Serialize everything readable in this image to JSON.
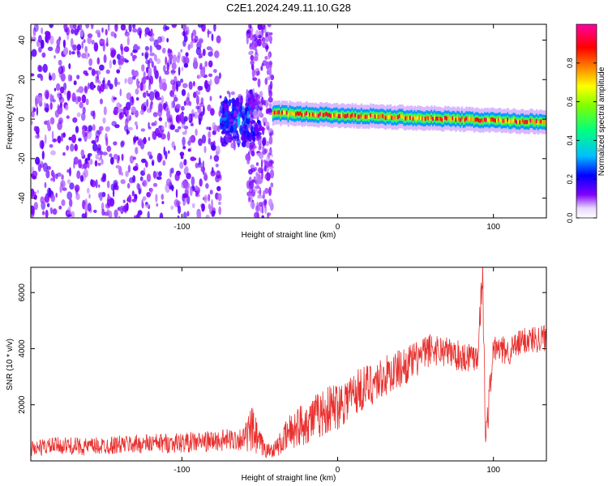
{
  "figure": {
    "title": "C2E1.2024.249.11.10.G28"
  },
  "chart_data": [
    {
      "type": "heatmap",
      "title": "C2E1.2024.249.11.10.G28",
      "xlabel": "Height of straight line (km)",
      "ylabel": "Frequency (Hz)",
      "xlim": [
        -197,
        134
      ],
      "ylim": [
        -50,
        48
      ],
      "xticks": [
        -100,
        0,
        100
      ],
      "yticks": [
        -40,
        -20,
        0,
        20,
        40
      ],
      "xtick_labels": [
        "-100",
        "0",
        "100"
      ],
      "ytick_labels": [
        "-40",
        "-20",
        "0",
        "20",
        "40"
      ],
      "grid": false,
      "colorbar": {
        "label": "Normalized spectral amplitude",
        "range": [
          0,
          1
        ],
        "ticks": [
          0.0,
          0.2,
          0.4,
          0.6,
          0.8
        ],
        "tick_labels": [
          "0.0",
          "0.2",
          "0.4",
          "0.6",
          "0.8"
        ],
        "colormap": [
          "#ffffff",
          "#8000ff",
          "#0000ff",
          "#00c0ff",
          "#00ff80",
          "#80ff00",
          "#ffff00",
          "#ff8000",
          "#ff0000",
          "#ff00a0"
        ]
      },
      "regions": [
        {
          "name": "scattered noise",
          "x": [
            -197,
            -75
          ],
          "freq": [
            -50,
            48
          ],
          "amplitude": 0.12
        },
        {
          "name": "burst",
          "x": [
            -75,
            -50
          ],
          "freq": [
            -15,
            15
          ],
          "amplitude": 0.25
        },
        {
          "name": "noise strip",
          "x": [
            -58,
            -42
          ],
          "freq": [
            -50,
            48
          ],
          "amplitude": 0.1
        },
        {
          "name": "signal trace",
          "x": [
            -42,
            134
          ],
          "freq_center": [
            3,
            -1.5
          ],
          "freq_halfwidth": 2.5,
          "amplitude": 0.8
        }
      ],
      "trace_path": [
        [
          -42,
          3
        ],
        [
          -20,
          1.5
        ],
        [
          0,
          0
        ],
        [
          40,
          -1
        ],
        [
          80,
          -1.5
        ],
        [
          100,
          -1.5
        ],
        [
          134,
          -1.5
        ]
      ]
    },
    {
      "type": "line",
      "xlabel": "Height of straight line (km)",
      "ylabel": "SNR (10 * v/v)",
      "xlim": [
        -197,
        134
      ],
      "ylim": [
        0,
        6900
      ],
      "xticks": [
        -100,
        0,
        100
      ],
      "yticks": [
        2000,
        4000,
        6000
      ],
      "xtick_labels": [
        "-100",
        "0",
        "100"
      ],
      "ytick_labels": [
        "2000",
        "4000",
        "6000"
      ],
      "grid": false,
      "series": [
        {
          "color": "#e8302e",
          "x": [
            -197,
            -180,
            -160,
            -140,
            -120,
            -100,
            -80,
            -70,
            -60,
            -55,
            -50,
            -45,
            -40,
            -35,
            -30,
            -20,
            -10,
            0,
            10,
            20,
            30,
            40,
            50,
            60,
            70,
            80,
            90,
            93,
            95,
            100,
            110,
            120,
            134
          ],
          "y": [
            450,
            550,
            500,
            580,
            620,
            650,
            700,
            750,
            800,
            1100,
            600,
            350,
            450,
            700,
            1100,
            1400,
            1700,
            2000,
            2400,
            2700,
            3000,
            3300,
            3600,
            4000,
            3900,
            3700,
            3800,
            6800,
            700,
            4000,
            3900,
            4300,
            4400
          ],
          "spread": [
            300,
            300,
            320,
            330,
            350,
            360,
            380,
            400,
            420,
            900,
            500,
            250,
            300,
            500,
            700,
            800,
            850,
            900,
            850,
            800,
            750,
            700,
            650,
            600,
            550,
            550,
            600,
            700,
            700,
            500,
            500,
            500,
            500
          ]
        }
      ]
    }
  ]
}
